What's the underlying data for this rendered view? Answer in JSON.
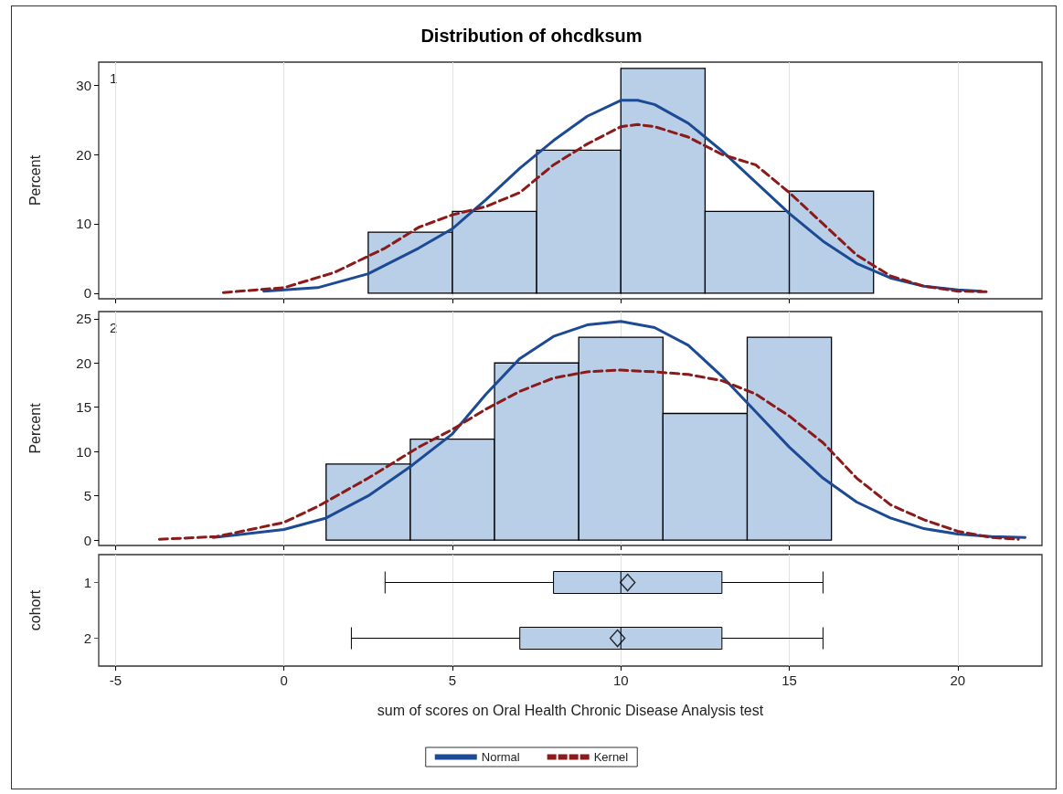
{
  "chart_data": [
    {
      "type": "histogram",
      "title": "Distribution of ohcdksum",
      "ylabel": "Percent",
      "annotations": [
        "1"
      ],
      "bins": [
        2.5,
        5,
        7.5,
        10,
        12.5,
        15,
        17.5
      ],
      "values": [
        8.8,
        11.8,
        20.6,
        32.4,
        11.8,
        14.7
      ],
      "color": "#b9cfe8",
      "series": [
        {
          "type": "line",
          "name": "Normal",
          "color": "#1d4a94",
          "line_style": "solid",
          "x": [
            -0.6,
            1,
            2.5,
            4,
            5,
            6,
            7,
            8,
            9,
            10,
            10.5,
            11,
            12,
            13,
            14,
            15,
            16,
            17,
            18,
            19,
            20,
            20.7
          ],
          "values": [
            0.3,
            0.8,
            2.8,
            6.5,
            9.3,
            13.5,
            18,
            22,
            25.5,
            27.8,
            27.8,
            27.2,
            24.5,
            20.5,
            16,
            11.5,
            7.5,
            4.3,
            2.2,
            1,
            0.5,
            0.3
          ]
        },
        {
          "type": "line",
          "name": "Kernel",
          "color": "#8b1a1a",
          "line_style": "dashed",
          "x": [
            -1.8,
            0,
            1.5,
            3,
            4,
            5,
            6,
            7,
            8,
            9,
            10,
            10.5,
            11,
            12,
            13,
            14,
            15,
            16,
            17,
            18,
            19,
            20,
            20.9
          ],
          "values": [
            0.1,
            0.8,
            3,
            6.5,
            9.5,
            11.3,
            12.5,
            14.5,
            18.5,
            21.5,
            24,
            24.3,
            24,
            22.5,
            20,
            18.5,
            14.5,
            10,
            5.5,
            2.5,
            1,
            0.3,
            0.2
          ]
        }
      ],
      "xlim": [
        -5.5,
        22.5
      ],
      "xticks": [
        -5,
        0,
        5,
        10,
        15,
        20
      ],
      "ylim": [
        -0.8,
        33.3
      ],
      "yticks": [
        0,
        10,
        20,
        30
      ],
      "grid": "x",
      "legend": "bottom",
      "tick_labels": "y",
      "marker": "none"
    },
    {
      "type": "histogram",
      "ylabel": "Percent",
      "annotations": [
        "2"
      ],
      "bins": [
        1.25,
        3.75,
        6.25,
        8.75,
        11.25,
        13.75,
        16.25
      ],
      "values": [
        8.6,
        11.4,
        20,
        22.9,
        14.3,
        22.9
      ],
      "color": "#b9cfe8",
      "series": [
        {
          "type": "line",
          "color": "#1d4a94",
          "line_style": "solid",
          "x": [
            -2.1,
            0,
            1.25,
            2.5,
            3.75,
            5,
            6,
            7,
            8,
            9,
            10,
            11,
            12,
            13,
            14,
            15,
            16,
            17,
            18,
            19,
            20,
            21,
            22
          ],
          "values": [
            0.3,
            1.2,
            2.5,
            5,
            8.3,
            12,
            16.5,
            20.5,
            23,
            24.3,
            24.7,
            24,
            22,
            18.5,
            14.5,
            10.5,
            7,
            4.3,
            2.5,
            1.3,
            0.7,
            0.4,
            0.3
          ]
        },
        {
          "type": "line",
          "color": "#8b1a1a",
          "line_style": "dashed",
          "x": [
            -3.7,
            -2,
            0,
            1,
            2.5,
            4,
            5,
            6,
            7,
            8,
            9,
            10,
            11,
            12,
            13,
            14,
            15,
            16,
            17,
            18,
            19,
            20,
            21,
            21.8
          ],
          "values": [
            0.1,
            0.4,
            2,
            3.8,
            7,
            10.5,
            12.5,
            14.8,
            16.8,
            18.3,
            19,
            19.2,
            19,
            18.7,
            18,
            16.5,
            14,
            11,
            7,
            4,
            2.3,
            1,
            0.3,
            0.1
          ]
        }
      ],
      "xlim": [
        -5.5,
        22.5
      ],
      "xticks": [
        -5,
        0,
        5,
        10,
        15,
        20
      ],
      "ylim": [
        -0.6,
        25.8
      ],
      "yticks": [
        0,
        5,
        10,
        15,
        20,
        25
      ],
      "grid": "x",
      "tick_labels": "y",
      "marker": "none"
    },
    {
      "type": "box",
      "orientation": "horizontal",
      "categories": [
        "1",
        "2"
      ],
      "ylabel": "cohort",
      "xlabel": "sum of scores on Oral Health Chronic Disease Analysis test",
      "color": "#b9cfe8",
      "boxes": [
        {
          "low": 3,
          "q1": 8,
          "median": 10,
          "q3": 13,
          "high": 16,
          "mean": 10.2
        },
        {
          "low": 2,
          "q1": 7,
          "median": 10,
          "q3": 13,
          "high": 16,
          "mean": 9.9
        }
      ],
      "xlim": [
        -5.5,
        22.5
      ],
      "xticks": [
        -5,
        0,
        5,
        10,
        15,
        20
      ],
      "grid": "x"
    }
  ]
}
